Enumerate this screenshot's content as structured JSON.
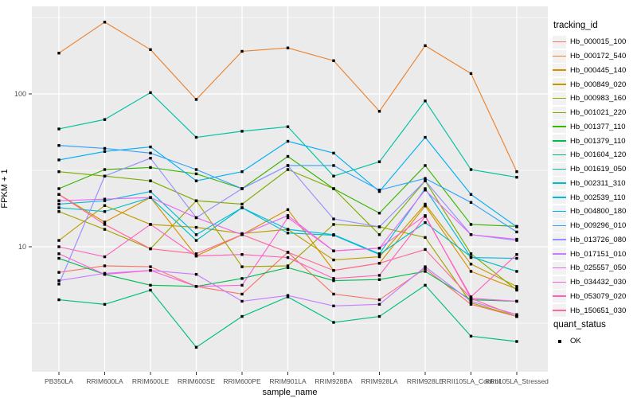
{
  "figure": {
    "background": "#FFFFFF",
    "panel_background": "#EBEBEB",
    "grid_color": "#FFFFFF",
    "tick_label_color": "#4D4D4D",
    "point_color": "#000000"
  },
  "legend": {
    "tracking_title": "tracking_id",
    "quant_title": "quant_status",
    "quant_items": [
      {
        "label": "OK",
        "shape": "black-square"
      }
    ]
  },
  "chart_data": {
    "type": "line",
    "xlabel": "sample_name",
    "ylabel": "FPKM + 1",
    "y_scale": "log10",
    "y_major_ticks": [
      10,
      100
    ],
    "y_minor_ticks": [
      3.162,
      31.62,
      316.2
    ],
    "ylim": [
      1.5,
      365
    ],
    "grid": "on",
    "legend_position": "right",
    "point_shape": "filled-square",
    "categories": [
      "PB350LA",
      "RRIM600LA",
      "RRIM600LE",
      "RRIM600SE",
      "RRIM600PE",
      "RRIM901LA",
      "RRIM928BA",
      "RRIM928LA",
      "RRIM928LE",
      "RRII105LA_Control",
      "RRII105LA_Stressed"
    ],
    "series": [
      {
        "name": "Hb_000015_100",
        "color": "#F8766D",
        "values": [
          6.8,
          7.5,
          7.4,
          5.5,
          4.9,
          9.2,
          4.9,
          4.5,
          7.2,
          4.2,
          3.5
        ]
      },
      {
        "name": "Hb_000172_540",
        "color": "#EA8331",
        "values": [
          185,
          295,
          195,
          92,
          190,
          200,
          165,
          77,
          207,
          136,
          31
        ]
      },
      {
        "name": "Hb_000445_140",
        "color": "#D89000",
        "values": [
          22,
          14.5,
          21,
          8.7,
          12,
          17.5,
          7.0,
          7.8,
          18.5,
          6.9,
          5.3
        ]
      },
      {
        "name": "Hb_000849_020",
        "color": "#C09B00",
        "values": [
          11,
          18.6,
          14,
          13.4,
          12.2,
          13,
          8.2,
          8.6,
          19,
          7.7,
          5.5
        ]
      },
      {
        "name": "Hb_000983_160",
        "color": "#A3A500",
        "values": [
          17,
          13,
          9.7,
          20,
          7.4,
          7.5,
          14,
          13.5,
          11.5,
          4.3,
          3.5
        ]
      },
      {
        "name": "Hb_001021_220",
        "color": "#7CAE00",
        "values": [
          31,
          29,
          27,
          20,
          19,
          32,
          24,
          12,
          27,
          9,
          5.2
        ]
      },
      {
        "name": "Hb_001377_110",
        "color": "#39B600",
        "values": [
          24,
          32,
          33,
          30,
          24,
          39,
          24,
          16.6,
          34,
          14,
          13.6
        ]
      },
      {
        "name": "Hb_001379_110",
        "color": "#00BB4E",
        "values": [
          8.4,
          6.6,
          5.6,
          5.5,
          6.2,
          7.3,
          6.0,
          6.1,
          6.9,
          4.5,
          4.4
        ]
      },
      {
        "name": "Hb_001604_120",
        "color": "#00BF7D",
        "values": [
          4.5,
          4.2,
          5.2,
          2.2,
          3.5,
          4.7,
          3.2,
          3.5,
          5.6,
          2.6,
          2.4
        ]
      },
      {
        "name": "Hb_001619_050",
        "color": "#00C1A3",
        "values": [
          59,
          68,
          102,
          52,
          57,
          61,
          29,
          36,
          90,
          32,
          28.5
        ]
      },
      {
        "name": "Hb_002311_310",
        "color": "#00BFC4",
        "values": [
          18,
          17,
          21,
          11,
          18,
          12.3,
          11.9,
          8.9,
          14.4,
          8.6,
          6.9
        ]
      },
      {
        "name": "Hb_002539_110",
        "color": "#00BAE0",
        "values": [
          19,
          20,
          23,
          12,
          18,
          13,
          12,
          9,
          24,
          8.5,
          8.4
        ]
      },
      {
        "name": "Hb_004800_180",
        "color": "#00B0F6",
        "values": [
          37,
          42,
          45,
          27,
          31,
          49,
          41,
          23,
          52,
          22,
          13.5
        ]
      },
      {
        "name": "Hb_009296_010",
        "color": "#35A2FF",
        "values": [
          46,
          44,
          41,
          32,
          24,
          34,
          34,
          23.5,
          28,
          19.5,
          12.5
        ]
      },
      {
        "name": "Hb_013726_080",
        "color": "#9590FF",
        "values": [
          5.7,
          29,
          38,
          15.5,
          24,
          34,
          15.2,
          13.5,
          27,
          12,
          11
        ]
      },
      {
        "name": "Hb_017151_010",
        "color": "#C77CFF",
        "values": [
          6.0,
          6.7,
          7.0,
          6.6,
          4.4,
          4.8,
          4.1,
          4.2,
          7.4,
          4.4,
          3.6
        ]
      },
      {
        "name": "Hb_025557_050",
        "color": "#E76BF3",
        "values": [
          20,
          20.5,
          21,
          15.5,
          12,
          16,
          9.4,
          9.8,
          23.5,
          12,
          11.2
        ]
      },
      {
        "name": "Hb_034432_030",
        "color": "#FA62DB",
        "values": [
          9.0,
          6.6,
          7.0,
          5.5,
          5.6,
          15.5,
          9.4,
          9.8,
          16,
          4.6,
          4.4
        ]
      },
      {
        "name": "Hb_053079_020",
        "color": "#FF62BC",
        "values": [
          10,
          8.6,
          14,
          8.7,
          8.9,
          8.5,
          6.2,
          6.5,
          15.8,
          4.7,
          8.9
        ]
      },
      {
        "name": "Hb_150651_030",
        "color": "#FF6A98",
        "values": [
          22,
          14,
          9.7,
          9.0,
          12,
          9.2,
          7.0,
          7.8,
          9.6,
          4.6,
          3.5
        ]
      }
    ]
  }
}
